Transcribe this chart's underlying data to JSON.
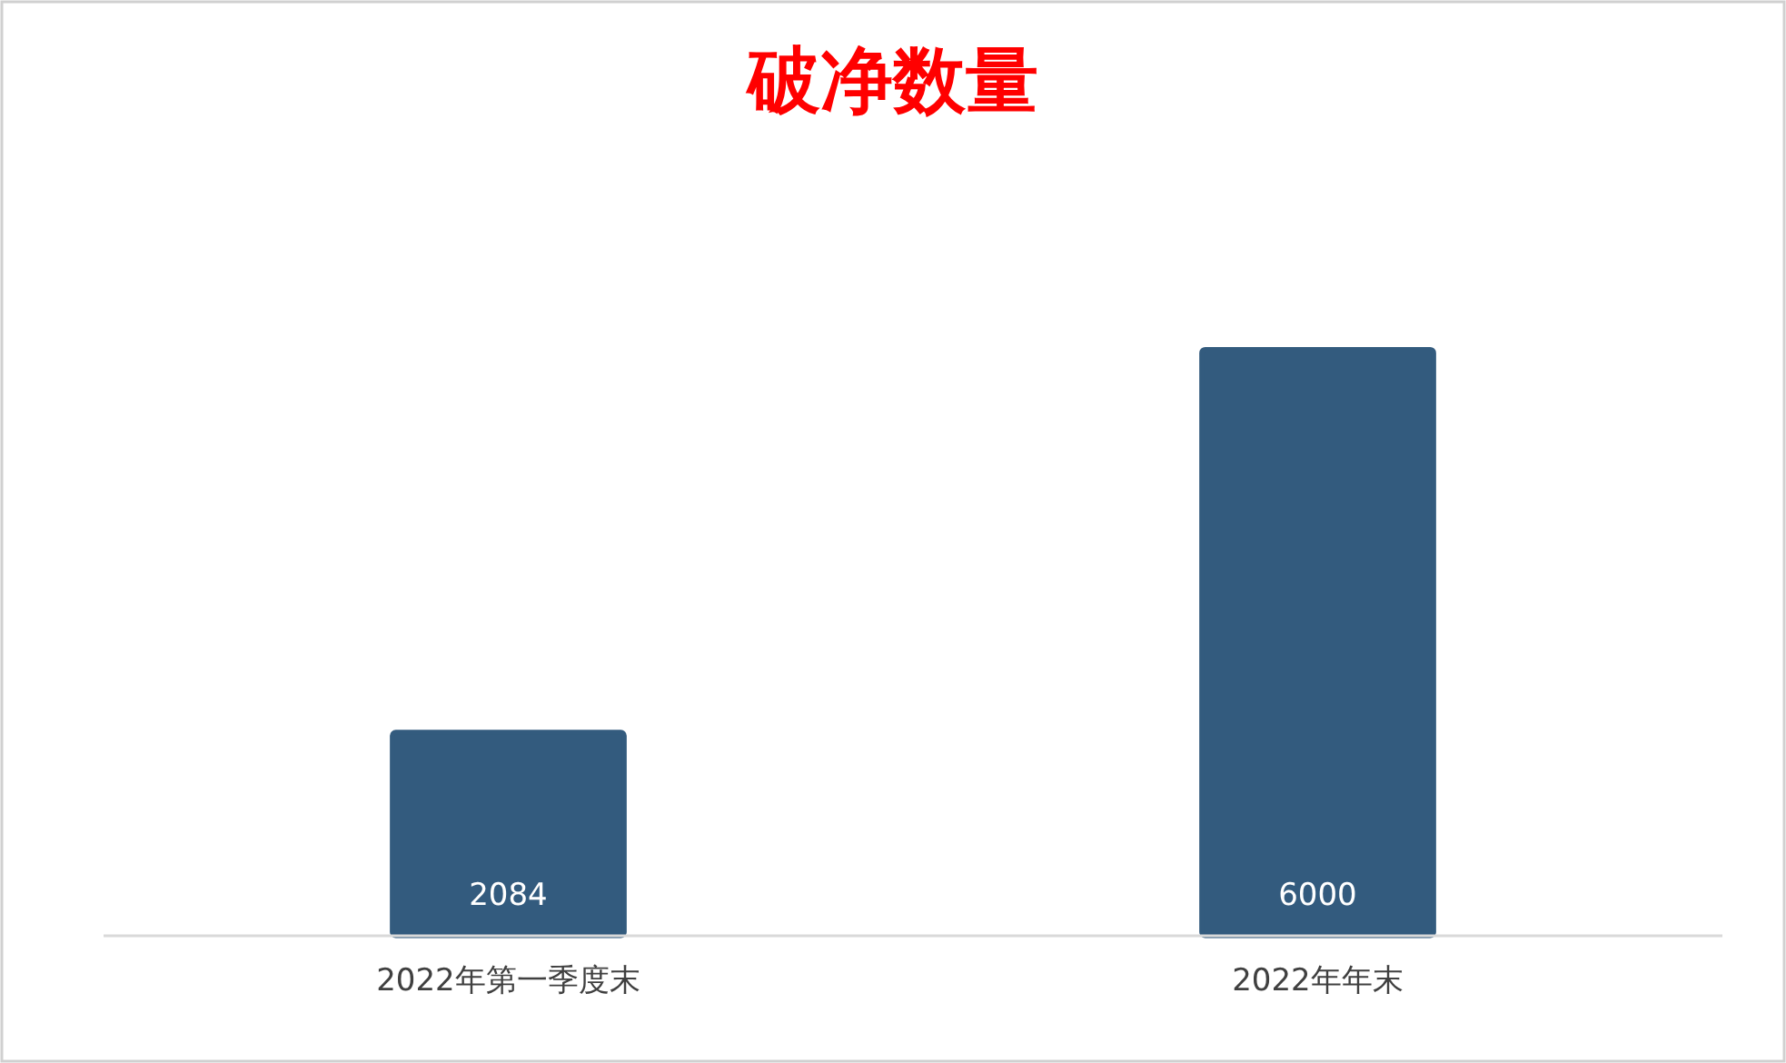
{
  "chart_data": {
    "type": "bar",
    "title": "破净数量",
    "categories": [
      "2022年第一季度末",
      "2022年年末"
    ],
    "values": [
      2084,
      6000
    ],
    "color": "#335b7e",
    "data_labels": true
  }
}
